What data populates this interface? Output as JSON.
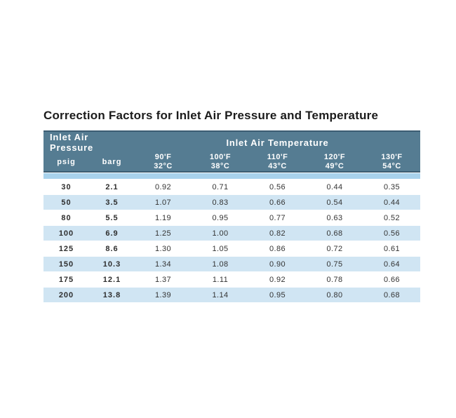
{
  "title": "Correction Factors for Inlet Air Pressure and Temperature",
  "colors": {
    "header_background": "#557c92",
    "header_border": "#3c5d72",
    "accent_strip": "#a8d2ec",
    "alt_row": "#d0e5f3",
    "title_text": "#1b1b1b",
    "body_text": "#333333"
  },
  "table": {
    "header_groups": [
      {
        "label": "Inlet Air Pressure"
      },
      {
        "label": "Inlet Air Temperature"
      }
    ],
    "pressure_columns": [
      {
        "label": "psig"
      },
      {
        "label": "barg"
      }
    ],
    "temperature_columns": [
      {
        "f": "90'F",
        "c": "32°C"
      },
      {
        "f": "100'F",
        "c": "38°C"
      },
      {
        "f": "110'F",
        "c": "43°C"
      },
      {
        "f": "120'F",
        "c": "49°C"
      },
      {
        "f": "130'F",
        "c": "54°C"
      }
    ],
    "rows": [
      {
        "psig": "30",
        "barg": "2.1",
        "factors": [
          "0.92",
          "0.71",
          "0.56",
          "0.44",
          "0.35"
        ]
      },
      {
        "psig": "50",
        "barg": "3.5",
        "factors": [
          "1.07",
          "0.83",
          "0.66",
          "0.54",
          "0.44"
        ]
      },
      {
        "psig": "80",
        "barg": "5.5",
        "factors": [
          "1.19",
          "0.95",
          "0.77",
          "0.63",
          "0.52"
        ]
      },
      {
        "psig": "100",
        "barg": "6.9",
        "factors": [
          "1.25",
          "1.00",
          "0.82",
          "0.68",
          "0.56"
        ]
      },
      {
        "psig": "125",
        "barg": "8.6",
        "factors": [
          "1.30",
          "1.05",
          "0.86",
          "0.72",
          "0.61"
        ]
      },
      {
        "psig": "150",
        "barg": "10.3",
        "factors": [
          "1.34",
          "1.08",
          "0.90",
          "0.75",
          "0.64"
        ]
      },
      {
        "psig": "175",
        "barg": "12.1",
        "factors": [
          "1.37",
          "1.11",
          "0.92",
          "0.78",
          "0.66"
        ]
      },
      {
        "psig": "200",
        "barg": "13.8",
        "factors": [
          "1.39",
          "1.14",
          "0.95",
          "0.80",
          "0.68"
        ]
      }
    ]
  }
}
